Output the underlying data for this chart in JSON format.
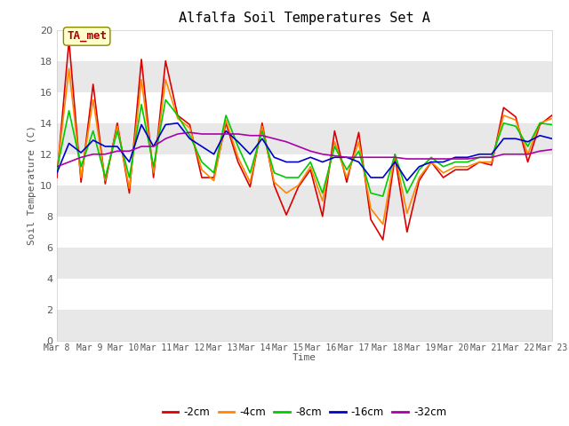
{
  "title": "Alfalfa Soil Temperatures Set A",
  "xlabel": "Time",
  "ylabel": "Soil Temperature (C)",
  "ylim": [
    0,
    20
  ],
  "yticks": [
    0,
    2,
    4,
    6,
    8,
    10,
    12,
    14,
    16,
    18,
    20
  ],
  "annotation_label": "TA_met",
  "fig_bg": "#ffffff",
  "plot_bg_even": "#e8e8e8",
  "plot_bg_odd": "#ffffff",
  "series": {
    "-2cm": {
      "color": "#dd0000",
      "lw": 1.2
    },
    "-4cm": {
      "color": "#ff8800",
      "lw": 1.2
    },
    "-8cm": {
      "color": "#00cc00",
      "lw": 1.2
    },
    "-16cm": {
      "color": "#0000cc",
      "lw": 1.2
    },
    "-32cm": {
      "color": "#aa00aa",
      "lw": 1.2
    }
  },
  "x_labels": [
    "Mar 8",
    "Mar 9",
    "Mar 10",
    "Mar 11",
    "Mar 12",
    "Mar 13",
    "Mar 14",
    "Mar 15",
    "Mar 16",
    "Mar 17",
    "Mar 18",
    "Mar 19",
    "Mar 20",
    "Mar 21",
    "Mar 22",
    "Mar 23"
  ],
  "data_2cm": [
    10.5,
    19.3,
    10.2,
    16.5,
    10.1,
    14.0,
    9.5,
    18.1,
    10.5,
    18.0,
    14.5,
    13.9,
    10.5,
    10.5,
    14.0,
    11.5,
    9.9,
    14.0,
    10.0,
    8.1,
    9.9,
    11.0,
    8.0,
    13.5,
    10.2,
    13.4,
    7.8,
    6.5,
    11.8,
    7.0,
    10.3,
    11.5,
    10.5,
    11.0,
    11.0,
    11.5,
    11.3,
    15.0,
    14.4,
    11.5,
    13.9,
    14.5
  ],
  "data_4cm": [
    10.8,
    17.5,
    10.5,
    15.5,
    10.3,
    13.8,
    9.8,
    16.8,
    10.8,
    16.8,
    14.3,
    13.7,
    11.0,
    10.3,
    14.2,
    11.8,
    10.2,
    13.8,
    10.2,
    9.5,
    10.0,
    11.2,
    9.0,
    12.8,
    10.5,
    12.8,
    8.5,
    7.5,
    12.0,
    8.2,
    10.5,
    11.5,
    10.8,
    11.2,
    11.2,
    11.5,
    11.5,
    14.5,
    14.2,
    12.0,
    14.0,
    14.3
  ],
  "data_8cm": [
    11.0,
    14.8,
    11.2,
    13.5,
    10.5,
    13.5,
    10.5,
    15.2,
    11.2,
    15.5,
    14.5,
    13.2,
    11.5,
    10.8,
    14.5,
    12.5,
    10.8,
    13.5,
    10.8,
    10.5,
    10.5,
    11.5,
    9.5,
    12.5,
    11.0,
    12.2,
    9.5,
    9.3,
    12.0,
    9.5,
    11.0,
    11.8,
    11.2,
    11.5,
    11.5,
    11.8,
    11.8,
    14.0,
    13.8,
    12.5,
    14.0,
    13.9
  ],
  "data_16cm": [
    10.8,
    12.7,
    12.1,
    12.9,
    12.5,
    12.5,
    11.5,
    13.9,
    12.5,
    13.9,
    14.0,
    13.0,
    12.5,
    12.0,
    13.5,
    12.8,
    12.0,
    13.0,
    11.8,
    11.5,
    11.5,
    11.8,
    11.5,
    11.8,
    11.8,
    11.5,
    10.5,
    10.5,
    11.5,
    10.3,
    11.2,
    11.5,
    11.5,
    11.8,
    11.8,
    12.0,
    12.0,
    13.0,
    13.0,
    12.8,
    13.2,
    13.0
  ],
  "data_32cm": [
    11.2,
    11.5,
    11.8,
    12.0,
    12.0,
    12.2,
    12.2,
    12.5,
    12.5,
    13.0,
    13.3,
    13.4,
    13.3,
    13.3,
    13.3,
    13.3,
    13.2,
    13.2,
    13.0,
    12.8,
    12.5,
    12.2,
    12.0,
    11.9,
    11.8,
    11.8,
    11.8,
    11.8,
    11.8,
    11.7,
    11.7,
    11.7,
    11.7,
    11.7,
    11.7,
    11.8,
    11.8,
    12.0,
    12.0,
    12.0,
    12.2,
    12.3
  ]
}
